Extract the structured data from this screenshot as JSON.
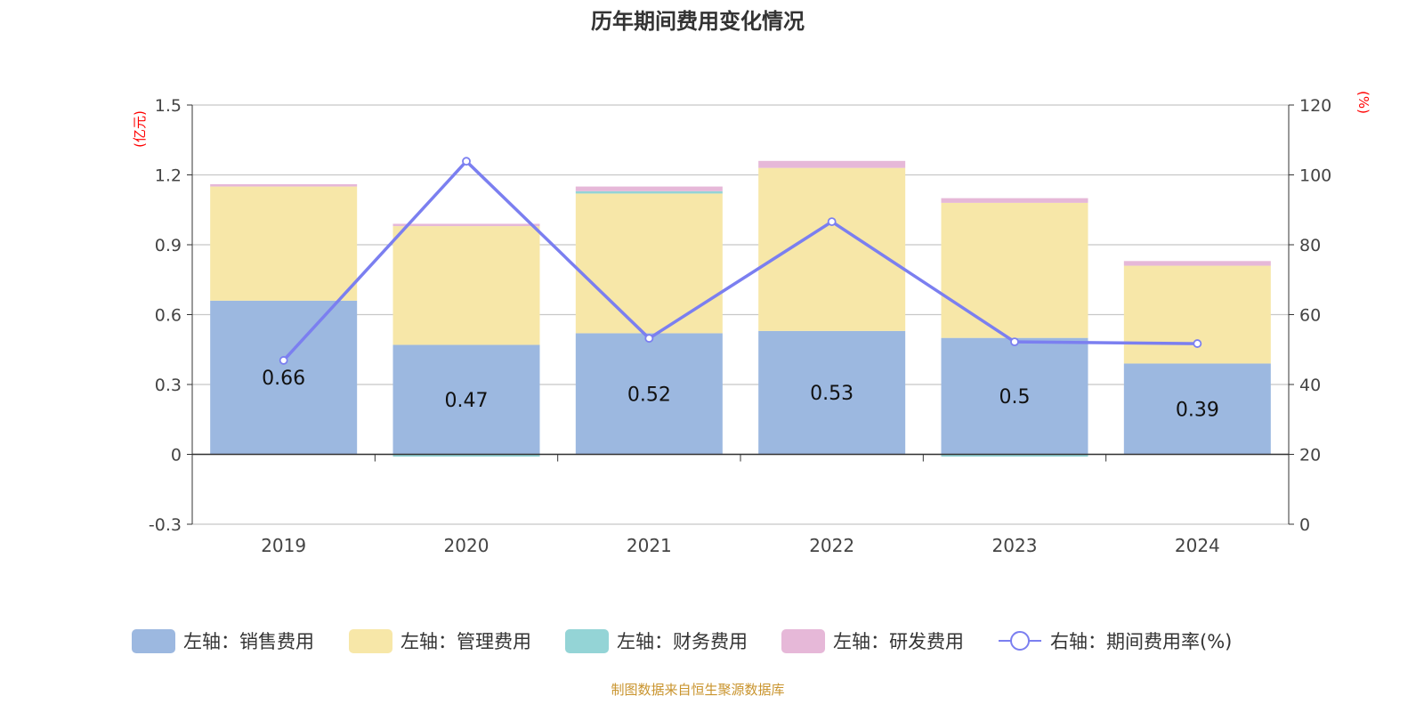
{
  "chart_data": {
    "type": "bar",
    "title": "历年期间费用变化情况",
    "categories": [
      "2019",
      "2020",
      "2021",
      "2022",
      "2023",
      "2024"
    ],
    "left_axis": {
      "unit_label": "(亿元)",
      "ylim": [
        -0.3,
        1.5
      ],
      "ticks": [
        "-0.3",
        "0",
        "0.3",
        "0.6",
        "0.9",
        "1.2",
        "1.5"
      ]
    },
    "right_axis": {
      "unit_label": "(%)",
      "ylim": [
        0,
        120
      ],
      "ticks": [
        "0",
        "20",
        "40",
        "60",
        "80",
        "100",
        "120"
      ]
    },
    "stacked": true,
    "grid": true,
    "legend_position": "bottom",
    "series": [
      {
        "name": "左轴：销售费用",
        "type": "bar",
        "axis": "left",
        "color": "#9cb8e0",
        "values": [
          0.66,
          0.47,
          0.52,
          0.53,
          0.5,
          0.39
        ],
        "data_labels": [
          "0.66",
          "0.47",
          "0.52",
          "0.53",
          "0.5",
          "0.39"
        ]
      },
      {
        "name": "左轴：管理费用",
        "type": "bar",
        "axis": "left",
        "color": "#f7e7a8",
        "values": [
          0.49,
          0.51,
          0.6,
          0.7,
          0.58,
          0.42
        ]
      },
      {
        "name": "左轴：财务费用",
        "type": "bar",
        "axis": "left",
        "color": "#94d4d6",
        "values": [
          0.0,
          -0.01,
          0.01,
          0.0,
          -0.01,
          0.0
        ]
      },
      {
        "name": "左轴：研发费用",
        "type": "bar",
        "axis": "left",
        "color": "#e6b8d8",
        "values": [
          0.01,
          0.01,
          0.02,
          0.03,
          0.02,
          0.02
        ]
      },
      {
        "name": "右轴：期间费用率(%)",
        "type": "line",
        "axis": "right",
        "color": "#7b7ff0",
        "values": [
          46.9,
          103.9,
          53.2,
          86.6,
          52.2,
          51.7
        ]
      }
    ]
  },
  "footer": "制图数据来自恒生聚源数据库",
  "colors": {
    "title": "#333333",
    "axis_unit": "#ff0000",
    "footer": "#c9942e"
  }
}
